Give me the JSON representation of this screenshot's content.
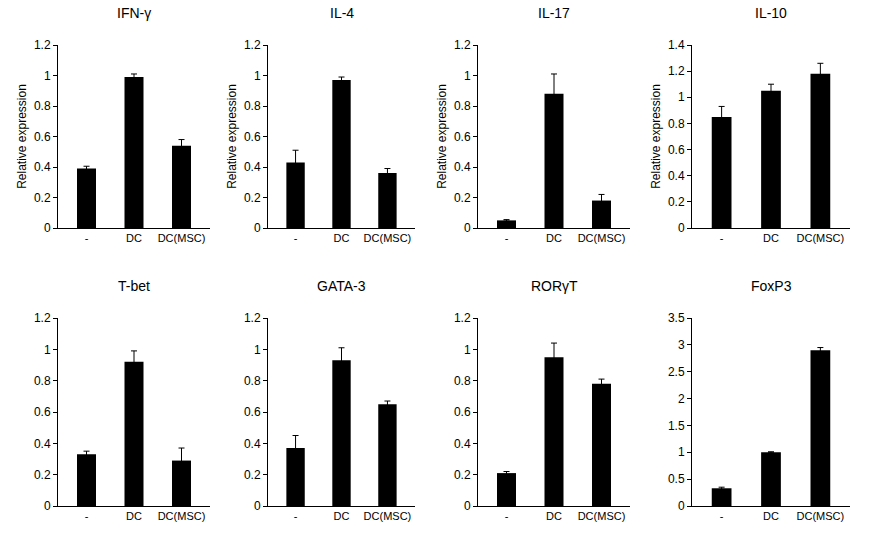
{
  "chart_data": [
    {
      "type": "bar",
      "title": "IFN-γ",
      "categories": [
        "-",
        "DC",
        "DC(MSC)"
      ],
      "values": [
        0.39,
        0.99,
        0.54
      ],
      "errors": [
        0.015,
        0.02,
        0.04
      ],
      "color": "#000000",
      "ylim": [
        0,
        1.2
      ],
      "yticks": [
        0,
        0.2,
        0.4,
        0.6,
        0.8,
        1,
        1.2
      ],
      "y_label": "Relative expression"
    },
    {
      "type": "bar",
      "title": "IL-4",
      "categories": [
        "-",
        "DC",
        "DC(MSC)"
      ],
      "values": [
        0.43,
        0.97,
        0.36
      ],
      "errors": [
        0.08,
        0.02,
        0.03
      ],
      "color": "#000000",
      "ylim": [
        0,
        1.2
      ],
      "yticks": [
        0,
        0.2,
        0.4,
        0.6,
        0.8,
        1,
        1.2
      ],
      "y_label": "Relative expression"
    },
    {
      "type": "bar",
      "title": "IL-17",
      "categories": [
        "-",
        "DC",
        "DC(MSC)"
      ],
      "values": [
        0.05,
        0.88,
        0.18
      ],
      "errors": [
        0.005,
        0.13,
        0.04
      ],
      "color": "#000000",
      "ylim": [
        0,
        1.2
      ],
      "yticks": [
        0,
        0.2,
        0.4,
        0.6,
        0.8,
        1,
        1.2
      ],
      "y_label": "Relative expression"
    },
    {
      "type": "bar",
      "title": "IL-10",
      "categories": [
        "-",
        "DC",
        "DC(MSC)"
      ],
      "values": [
        0.85,
        1.05,
        1.18
      ],
      "errors": [
        0.08,
        0.05,
        0.08
      ],
      "color": "#000000",
      "ylim": [
        0,
        1.4
      ],
      "yticks": [
        0,
        0.2,
        0.4,
        0.6,
        0.8,
        1,
        1.2,
        1.4
      ],
      "y_label": "Relative expression"
    },
    {
      "type": "bar",
      "title": "T-bet",
      "categories": [
        "-",
        "DC",
        "DC(MSC)"
      ],
      "values": [
        0.33,
        0.92,
        0.29
      ],
      "errors": [
        0.02,
        0.07,
        0.08
      ],
      "color": "#000000",
      "ylim": [
        0,
        1.2
      ],
      "yticks": [
        0,
        0.2,
        0.4,
        0.6,
        0.8,
        1,
        1.2
      ]
    },
    {
      "type": "bar",
      "title": "GATA-3",
      "categories": [
        "-",
        "DC",
        "DC(MSC)"
      ],
      "values": [
        0.37,
        0.93,
        0.65
      ],
      "errors": [
        0.08,
        0.08,
        0.02
      ],
      "color": "#000000",
      "ylim": [
        0,
        1.2
      ],
      "yticks": [
        0,
        0.2,
        0.4,
        0.6,
        0.8,
        1,
        1.2
      ]
    },
    {
      "type": "bar",
      "title": "RORγT",
      "categories": [
        "-",
        "DC",
        "DC(MSC)"
      ],
      "values": [
        0.21,
        0.95,
        0.78
      ],
      "errors": [
        0.01,
        0.09,
        0.03
      ],
      "color": "#000000",
      "ylim": [
        0,
        1.2
      ],
      "yticks": [
        0,
        0.2,
        0.4,
        0.6,
        0.8,
        1,
        1.2
      ]
    },
    {
      "type": "bar",
      "title": "FoxP3",
      "categories": [
        "-",
        "DC",
        "DC(MSC)"
      ],
      "values": [
        0.33,
        1.0,
        2.9
      ],
      "errors": [
        0.02,
        0.01,
        0.05
      ],
      "color": "#000000",
      "ylim": [
        0,
        3.5
      ],
      "yticks": [
        0,
        0.5,
        1,
        1.5,
        2,
        2.5,
        3,
        3.5
      ]
    }
  ]
}
